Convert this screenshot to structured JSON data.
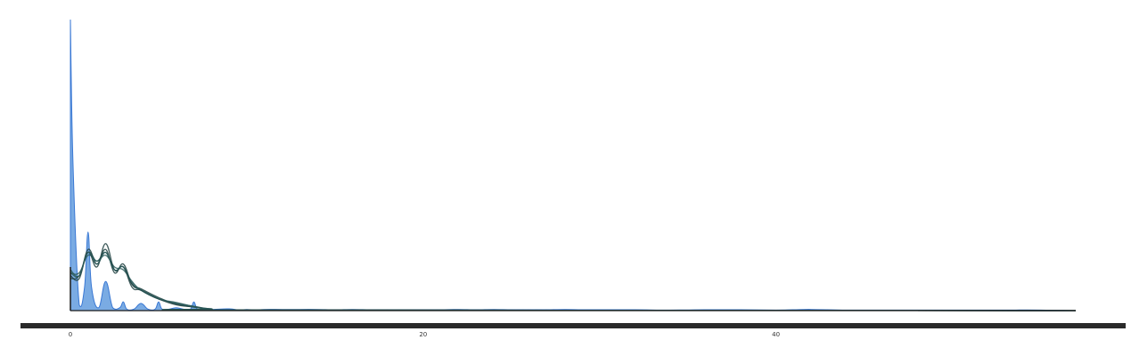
{
  "chart_data": {
    "type": "area",
    "title": "",
    "xlabel": "",
    "ylabel": "",
    "xlim": [
      0,
      57
    ],
    "ylim": [
      0,
      1
    ],
    "x_ticks": [
      {
        "value": 0,
        "label": "0"
      },
      {
        "value": 20,
        "label": "20"
      },
      {
        "value": 40,
        "label": "40"
      }
    ],
    "grid": false,
    "legend": "none",
    "colors": {
      "observed_fill": "#7aabe3",
      "observed_stroke": "#3a78d4",
      "sample_stroke": "#2c5a5a",
      "sample_stroke_dark": "#1f3f3f",
      "baseline": "#2a2a2a"
    },
    "series": [
      {
        "kind": "observed-density",
        "x": [
          0,
          0.15,
          0.5,
          0.8,
          1,
          1.2,
          1.6,
          2,
          2.4,
          2.8,
          3,
          3.2,
          3.6,
          4,
          4.4,
          4.8,
          5,
          5.2,
          5.6,
          6,
          6.4,
          6.8,
          7,
          7.2,
          7.6,
          8,
          9,
          9.6,
          10,
          10.5,
          11,
          12,
          13,
          14,
          15,
          16,
          17,
          18,
          19,
          20,
          21,
          22,
          23,
          24,
          25,
          26,
          27,
          28,
          29,
          30,
          32,
          34,
          36,
          38,
          40,
          41,
          42,
          44,
          46,
          48,
          50,
          52,
          53,
          55,
          57
        ],
        "y": [
          1.0,
          0.5,
          0.02,
          0.08,
          0.27,
          0.08,
          0.01,
          0.1,
          0.01,
          0.01,
          0.03,
          0.005,
          0.005,
          0.025,
          0.005,
          0.005,
          0.03,
          0.005,
          0.005,
          0.01,
          0.005,
          0.005,
          0.03,
          0.005,
          0.005,
          0.004,
          0.006,
          0.002,
          0.004,
          0.002,
          0.004,
          0.004,
          0.004,
          0.004,
          0.003,
          0.004,
          0.003,
          0.003,
          0.003,
          0.003,
          0.003,
          0.004,
          0.003,
          0.004,
          0.003,
          0.003,
          0.003,
          0.004,
          0.003,
          0.003,
          0.003,
          0.002,
          0.003,
          0.003,
          0.002,
          0.003,
          0.004,
          0.002,
          0.002,
          0.002,
          0.002,
          0.002,
          0.002,
          0.002,
          0.0
        ]
      },
      {
        "kind": "posterior-predictive-sample",
        "x": [
          0,
          0.5,
          1,
          1.5,
          2,
          2.5,
          3,
          3.5,
          4,
          5,
          6,
          7,
          8,
          10,
          57
        ],
        "y": [
          0.14,
          0.12,
          0.2,
          0.17,
          0.2,
          0.14,
          0.15,
          0.09,
          0.07,
          0.04,
          0.025,
          0.015,
          0.006,
          0.002,
          0.0
        ]
      },
      {
        "kind": "posterior-predictive-sample",
        "x": [
          0,
          0.5,
          1,
          1.5,
          2,
          2.5,
          3,
          3.5,
          4,
          5,
          6,
          7,
          8,
          10,
          57
        ],
        "y": [
          0.12,
          0.11,
          0.21,
          0.16,
          0.21,
          0.13,
          0.16,
          0.09,
          0.075,
          0.045,
          0.022,
          0.012,
          0.005,
          0.002,
          0.0
        ]
      },
      {
        "kind": "posterior-predictive-sample",
        "x": [
          0,
          0.5,
          1,
          1.5,
          2,
          2.5,
          3,
          3.5,
          4,
          5,
          6,
          7,
          8,
          10,
          57
        ],
        "y": [
          0.13,
          0.13,
          0.19,
          0.17,
          0.19,
          0.15,
          0.14,
          0.1,
          0.07,
          0.04,
          0.028,
          0.014,
          0.006,
          0.002,
          0.0
        ]
      },
      {
        "kind": "posterior-predictive-sample",
        "x": [
          0,
          0.5,
          1,
          1.5,
          2,
          2.5,
          3,
          3.5,
          4,
          5,
          6,
          7,
          8,
          10,
          57
        ],
        "y": [
          0.11,
          0.12,
          0.2,
          0.15,
          0.23,
          0.14,
          0.15,
          0.08,
          0.07,
          0.04,
          0.02,
          0.013,
          0.005,
          0.002,
          0.0
        ]
      },
      {
        "kind": "posterior-predictive-sample",
        "x": [
          0,
          0.5,
          1,
          1.5,
          2,
          2.5,
          3,
          3.5,
          4,
          5,
          6,
          7,
          8,
          10,
          57
        ],
        "y": [
          0.13,
          0.12,
          0.2,
          0.16,
          0.2,
          0.14,
          0.15,
          0.095,
          0.072,
          0.042,
          0.024,
          0.013,
          0.005,
          0.002,
          0.0
        ]
      }
    ]
  }
}
